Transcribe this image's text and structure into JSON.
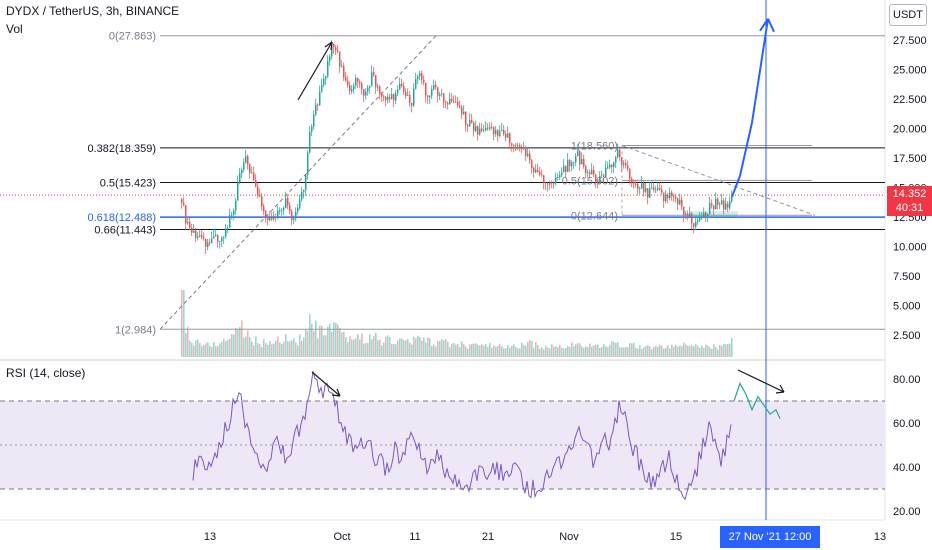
{
  "header": {
    "symbol": "DYDX / TetherUS, 3h, BINANCE",
    "vol_label": "Vol",
    "rsi_label": "RSI (14, close)"
  },
  "currency_button": "USDT",
  "last_price": {
    "price": "14.352",
    "countdown": "40:31"
  },
  "crosshair_date": "27 Nov '21   12:00",
  "colors": {
    "up": "#26a69a",
    "down": "#ef5350",
    "fib_blue": "#2962ff",
    "rsi_line": "#7e57c2",
    "rsi_band": "#ede7f6",
    "drawing_blue": "#2962ff",
    "last_price": "#f23645"
  },
  "chart_data": {
    "type": "candlestick",
    "price_axis": {
      "min": 1.0,
      "max": 30.0,
      "ticks": [
        "27.500",
        "25.000",
        "22.500",
        "20.000",
        "17.500",
        "15.000",
        "12.500",
        "10.000",
        "7.500",
        "5.000",
        "2.500"
      ]
    },
    "time_axis": {
      "ticks": [
        "13",
        "Oct",
        "11",
        "21",
        "Nov",
        "15",
        "13"
      ]
    },
    "fib_main": [
      {
        "label": "0(27.863)",
        "price": 27.863
      },
      {
        "label": "0.382(18.359)",
        "price": 18.359
      },
      {
        "label": "0.5(15.423)",
        "price": 15.423
      },
      {
        "label": "0.618(12.488)",
        "price": 12.488
      },
      {
        "label": "0.66(11.443)",
        "price": 11.443
      },
      {
        "label": "1(2.984)",
        "price": 2.984
      }
    ],
    "fib_small": [
      {
        "label": "1(18.560)",
        "price": 18.56
      },
      {
        "label": "0.5(15.602)",
        "price": 15.602
      },
      {
        "label": "0(12.644)",
        "price": 12.644
      }
    ],
    "price_path": [
      [
        181,
        14.0
      ],
      [
        186,
        12.0
      ],
      [
        192,
        11.0
      ],
      [
        200,
        10.6
      ],
      [
        210,
        10.2
      ],
      [
        218,
        10.8
      ],
      [
        226,
        11.5
      ],
      [
        234,
        13.5
      ],
      [
        240,
        16.5
      ],
      [
        246,
        17.5
      ],
      [
        254,
        15.0
      ],
      [
        262,
        13.2
      ],
      [
        270,
        12.0
      ],
      [
        278,
        13.0
      ],
      [
        286,
        13.8
      ],
      [
        292,
        12.2
      ],
      [
        298,
        13.5
      ],
      [
        304,
        15.5
      ],
      [
        308,
        19.0
      ],
      [
        314,
        21.5
      ],
      [
        320,
        23.0
      ],
      [
        326,
        25.0
      ],
      [
        332,
        27.5
      ],
      [
        338,
        26.0
      ],
      [
        344,
        24.0
      ],
      [
        350,
        23.0
      ],
      [
        356,
        24.5
      ],
      [
        364,
        23.0
      ],
      [
        372,
        24.5
      ],
      [
        380,
        23.0
      ],
      [
        390,
        22.5
      ],
      [
        400,
        23.5
      ],
      [
        410,
        22.0
      ],
      [
        418,
        25.0
      ],
      [
        426,
        23.0
      ],
      [
        434,
        23.5
      ],
      [
        444,
        22.5
      ],
      [
        452,
        22.0
      ],
      [
        460,
        21.5
      ],
      [
        466,
        20.5
      ],
      [
        474,
        20.0
      ],
      [
        482,
        19.5
      ],
      [
        490,
        20.0
      ],
      [
        500,
        19.5
      ],
      [
        510,
        19.0
      ],
      [
        520,
        18.5
      ],
      [
        528,
        17.5
      ],
      [
        536,
        16.0
      ],
      [
        544,
        15.8
      ],
      [
        552,
        15.5
      ],
      [
        560,
        16.0
      ],
      [
        568,
        17.0
      ],
      [
        576,
        17.8
      ],
      [
        584,
        16.5
      ],
      [
        592,
        16.0
      ],
      [
        600,
        15.8
      ],
      [
        608,
        16.5
      ],
      [
        616,
        18.0
      ],
      [
        624,
        17.0
      ],
      [
        632,
        15.5
      ],
      [
        640,
        15.0
      ],
      [
        648,
        14.5
      ],
      [
        656,
        14.8
      ],
      [
        664,
        14.2
      ],
      [
        672,
        14.5
      ],
      [
        680,
        13.5
      ],
      [
        688,
        12.5
      ],
      [
        694,
        12.0
      ],
      [
        700,
        12.3
      ],
      [
        706,
        13.0
      ],
      [
        712,
        13.5
      ],
      [
        718,
        13.8
      ],
      [
        724,
        13.2
      ],
      [
        728,
        13.5
      ],
      [
        732,
        14.352
      ]
    ],
    "volume_path": [
      [
        181,
        6.5
      ],
      [
        186,
        3.0
      ],
      [
        192,
        2.0
      ],
      [
        200,
        1.8
      ],
      [
        210,
        1.6
      ],
      [
        218,
        1.9
      ],
      [
        226,
        2.0
      ],
      [
        234,
        2.8
      ],
      [
        240,
        3.5
      ],
      [
        246,
        2.4
      ],
      [
        254,
        2.0
      ],
      [
        262,
        1.8
      ],
      [
        270,
        1.9
      ],
      [
        278,
        2.1
      ],
      [
        286,
        2.2
      ],
      [
        292,
        2.0
      ],
      [
        298,
        2.1
      ],
      [
        304,
        2.4
      ],
      [
        308,
        3.4
      ],
      [
        314,
        3.0
      ],
      [
        320,
        2.6
      ],
      [
        326,
        2.8
      ],
      [
        332,
        3.0
      ],
      [
        338,
        2.6
      ],
      [
        344,
        2.3
      ],
      [
        350,
        2.2
      ],
      [
        356,
        2.3
      ],
      [
        364,
        2.2
      ],
      [
        372,
        2.3
      ],
      [
        380,
        2.1
      ],
      [
        390,
        2.0
      ],
      [
        400,
        2.0
      ],
      [
        410,
        1.9
      ],
      [
        418,
        2.2
      ],
      [
        426,
        2.0
      ],
      [
        434,
        1.9
      ],
      [
        444,
        1.8
      ],
      [
        452,
        1.7
      ],
      [
        460,
        1.7
      ],
      [
        466,
        1.6
      ],
      [
        474,
        1.6
      ],
      [
        482,
        1.6
      ],
      [
        490,
        1.6
      ],
      [
        500,
        1.5
      ],
      [
        510,
        1.5
      ],
      [
        520,
        1.6
      ],
      [
        528,
        1.8
      ],
      [
        536,
        1.6
      ],
      [
        544,
        1.5
      ],
      [
        552,
        1.5
      ],
      [
        560,
        1.5
      ],
      [
        568,
        1.6
      ],
      [
        576,
        1.7
      ],
      [
        584,
        1.6
      ],
      [
        592,
        1.5
      ],
      [
        600,
        1.5
      ],
      [
        608,
        1.6
      ],
      [
        616,
        1.9
      ],
      [
        624,
        1.7
      ],
      [
        632,
        1.6
      ],
      [
        640,
        1.5
      ],
      [
        648,
        1.5
      ],
      [
        656,
        1.5
      ],
      [
        664,
        1.5
      ],
      [
        672,
        1.5
      ],
      [
        680,
        1.6
      ],
      [
        688,
        1.7
      ],
      [
        694,
        1.6
      ],
      [
        700,
        1.5
      ],
      [
        706,
        1.5
      ],
      [
        712,
        1.5
      ],
      [
        718,
        1.5
      ],
      [
        724,
        1.6
      ],
      [
        728,
        1.7
      ],
      [
        732,
        2.3
      ]
    ],
    "rsi": {
      "label": "RSI (14, close)",
      "axis_ticks": [
        "80.00",
        "60.00",
        "40.00",
        "20.00"
      ],
      "upper_band": 70,
      "middle": 50,
      "lower_band": 30,
      "path": [
        [
          193,
          38
        ],
        [
          198,
          42
        ],
        [
          204,
          40
        ],
        [
          210,
          44
        ],
        [
          216,
          48
        ],
        [
          222,
          52
        ],
        [
          228,
          60
        ],
        [
          234,
          72
        ],
        [
          240,
          76
        ],
        [
          246,
          60
        ],
        [
          252,
          48
        ],
        [
          258,
          42
        ],
        [
          264,
          36
        ],
        [
          270,
          44
        ],
        [
          276,
          50
        ],
        [
          282,
          46
        ],
        [
          288,
          42
        ],
        [
          294,
          52
        ],
        [
          300,
          58
        ],
        [
          306,
          66
        ],
        [
          310,
          80
        ],
        [
          316,
          78
        ],
        [
          322,
          72
        ],
        [
          328,
          76
        ],
        [
          334,
          74
        ],
        [
          340,
          62
        ],
        [
          346,
          54
        ],
        [
          352,
          50
        ],
        [
          358,
          46
        ],
        [
          364,
          52
        ],
        [
          370,
          48
        ],
        [
          376,
          44
        ],
        [
          382,
          42
        ],
        [
          388,
          40
        ],
        [
          394,
          48
        ],
        [
          400,
          44
        ],
        [
          406,
          50
        ],
        [
          412,
          60
        ],
        [
          418,
          48
        ],
        [
          424,
          42
        ],
        [
          430,
          38
        ],
        [
          436,
          44
        ],
        [
          442,
          40
        ],
        [
          448,
          38
        ],
        [
          454,
          36
        ],
        [
          460,
          32
        ],
        [
          466,
          28
        ],
        [
          472,
          36
        ],
        [
          478,
          38
        ],
        [
          484,
          34
        ],
        [
          490,
          38
        ],
        [
          496,
          42
        ],
        [
          502,
          36
        ],
        [
          508,
          34
        ],
        [
          514,
          40
        ],
        [
          520,
          36
        ],
        [
          526,
          32
        ],
        [
          532,
          30
        ],
        [
          538,
          28
        ],
        [
          544,
          34
        ],
        [
          550,
          38
        ],
        [
          556,
          46
        ],
        [
          562,
          42
        ],
        [
          568,
          44
        ],
        [
          574,
          52
        ],
        [
          580,
          56
        ],
        [
          586,
          48
        ],
        [
          592,
          44
        ],
        [
          598,
          46
        ],
        [
          604,
          50
        ],
        [
          610,
          52
        ],
        [
          616,
          62
        ],
        [
          622,
          70
        ],
        [
          628,
          56
        ],
        [
          634,
          48
        ],
        [
          640,
          42
        ],
        [
          646,
          38
        ],
        [
          652,
          34
        ],
        [
          658,
          32
        ],
        [
          664,
          40
        ],
        [
          670,
          44
        ],
        [
          676,
          36
        ],
        [
          680,
          26
        ],
        [
          684,
          22
        ],
        [
          688,
          26
        ],
        [
          694,
          36
        ],
        [
          700,
          44
        ],
        [
          706,
          54
        ],
        [
          712,
          58
        ],
        [
          716,
          50
        ],
        [
          720,
          40
        ],
        [
          726,
          50
        ],
        [
          732,
          60
        ]
      ],
      "projection": [
        [
          734,
          70
        ],
        [
          740,
          78
        ],
        [
          746,
          73
        ],
        [
          752,
          66
        ],
        [
          758,
          72
        ],
        [
          764,
          68
        ],
        [
          770,
          64
        ],
        [
          776,
          66
        ],
        [
          780,
          62
        ]
      ]
    }
  }
}
